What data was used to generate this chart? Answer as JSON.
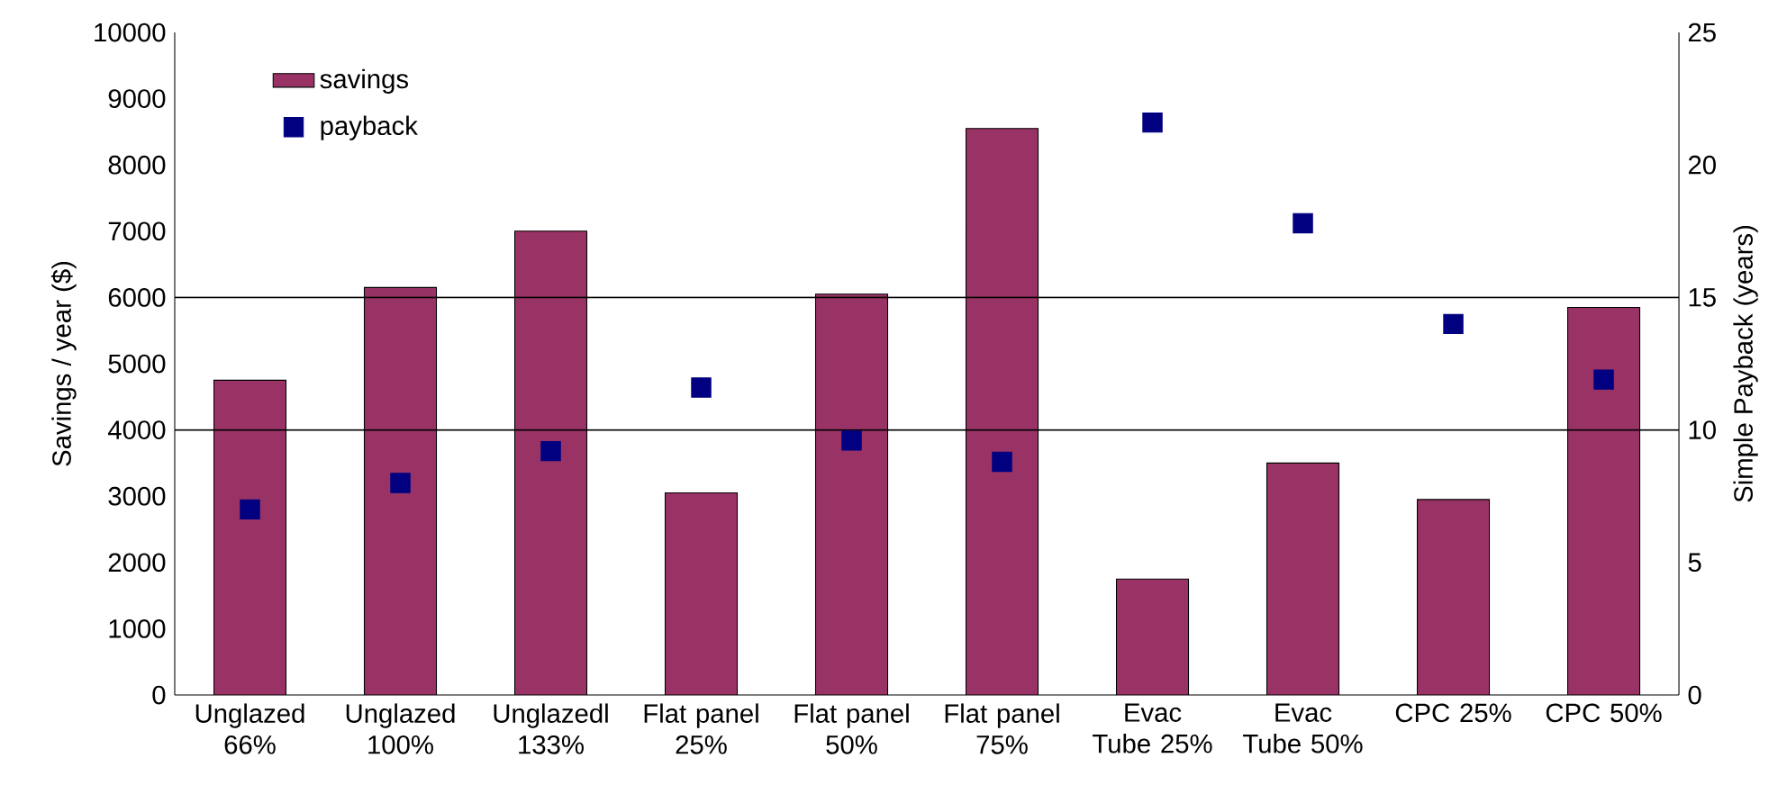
{
  "chart_data": {
    "type": "bar",
    "categories": [
      "Unglazed 66%",
      "Unglazed 100%",
      "Unglazedl 133%",
      "Flat panel 25%",
      "Flat panel 50%",
      "Flat panel 75%",
      "Evac Tube 25%",
      "Evac Tube 50%",
      "CPC 25%",
      "CPC 50%"
    ],
    "ylabel": "Savings / year ($)",
    "y2label": "Simple Payback (years)",
    "ylim": [
      0,
      10000
    ],
    "yticks": [
      0,
      1000,
      2000,
      3000,
      4000,
      5000,
      6000,
      7000,
      8000,
      9000,
      10000
    ],
    "y2lim": [
      0,
      25
    ],
    "y2ticks": [
      0,
      5,
      10,
      15,
      20,
      25
    ],
    "legend": "top left",
    "marker": "square",
    "series": [
      {
        "name": "savings",
        "color": "#993366",
        "values": [
          4750,
          6150,
          7000,
          3050,
          6050,
          8550,
          1750,
          3500,
          2950,
          5850
        ]
      },
      {
        "name": "payback",
        "type": "scatter",
        "axis": "y2",
        "color": "#000080",
        "values": [
          7.0,
          8.0,
          9.2,
          11.6,
          9.6,
          8.8,
          21.6,
          17.8,
          14.0,
          11.9
        ]
      }
    ],
    "ref_lines": [
      {
        "axis": "y2",
        "value": 10
      },
      {
        "axis": "y2",
        "value": 15
      }
    ]
  }
}
